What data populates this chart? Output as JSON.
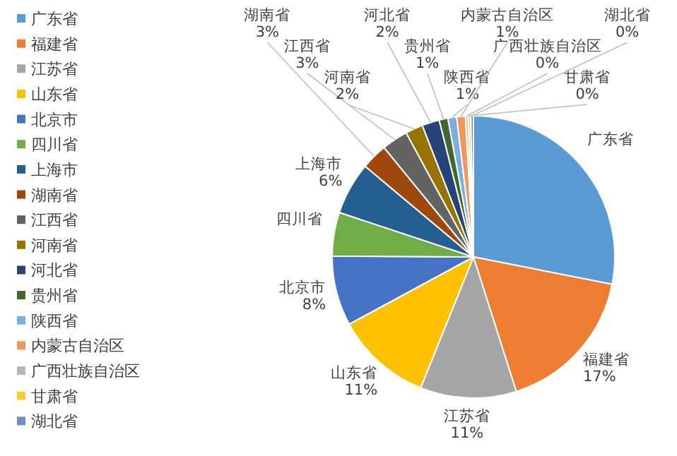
{
  "chart_data": {
    "type": "pie",
    "categories": [
      "广东省",
      "福建省",
      "江苏省",
      "山东省",
      "北京市",
      "四川省",
      "上海市",
      "湖南省",
      "江西省",
      "河南省",
      "河北省",
      "贵州省",
      "陕西省",
      "内蒙古自治区",
      "广西壮族自治区",
      "甘肃省",
      "湖北省"
    ],
    "values": [
      28.1,
      17,
      11,
      11,
      8,
      5,
      6,
      3,
      3,
      2,
      2,
      1,
      1,
      1,
      0.3,
      0.3,
      0.3
    ],
    "value_labels": [
      null,
      "17%",
      "11%",
      "11%",
      "8%",
      null,
      "6%",
      "3%",
      "3%",
      "2%",
      "2%",
      "1%",
      "1%",
      "1%",
      "0%",
      "0%",
      "0%"
    ],
    "colors": [
      "#5b9bd5",
      "#ed7d31",
      "#a5a5a5",
      "#ffc000",
      "#4472c4",
      "#70ad47",
      "#255e91",
      "#9e480e",
      "#636363",
      "#997300",
      "#264478",
      "#43682b",
      "#7cafdd",
      "#f1975a",
      "#b7b7b7",
      "#ffcd33",
      "#698ed0"
    ],
    "legend": "left"
  }
}
